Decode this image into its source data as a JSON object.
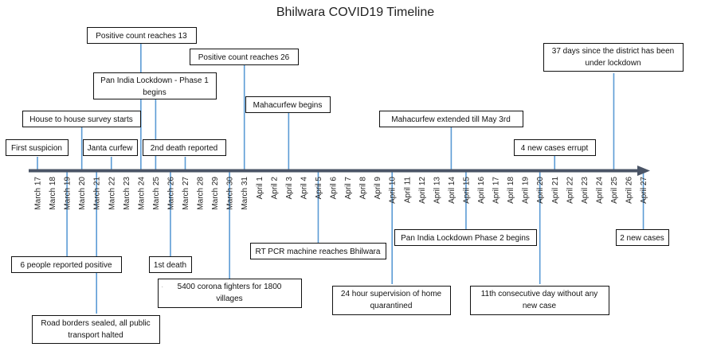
{
  "title": "Bhilwara COVID19 Timeline",
  "colors": {
    "axis": "#4a5466",
    "connector": "#5b9bd5",
    "box_border": "#111111",
    "text": "#111111"
  },
  "dates": [
    "March 17",
    "March 18",
    "March 19",
    "March 20",
    "March 21",
    "March 22",
    "March 23",
    "March 24",
    "March 25",
    "March 26",
    "March 27",
    "March 28",
    "March 29",
    "March 30",
    "March 31",
    "April 1",
    "April 2",
    "April 3",
    "April 4",
    "April 5",
    "April 6",
    "April 7",
    "April 8",
    "April 9",
    "April 10",
    "April 11",
    "April 12",
    "April 13",
    "April 14",
    "April 15",
    "April 16",
    "April 17",
    "April 18",
    "April 19",
    "April 20",
    "April 21",
    "April 22",
    "April 23",
    "April 24",
    "April 25",
    "April 26",
    "April 27"
  ],
  "events_above": [
    {
      "date": "March 17",
      "lines": [
        "First suspicion"
      ]
    },
    {
      "date": "March 20",
      "lines": [
        "House to house survey starts"
      ]
    },
    {
      "date": "March 22",
      "lines": [
        "Janta curfew"
      ]
    },
    {
      "date": "March 24",
      "lines": [
        "Positive count reaches 13"
      ]
    },
    {
      "date": "March 25",
      "lines": [
        "Pan India Lockdown - Phase 1",
        "begins"
      ]
    },
    {
      "date": "March 27",
      "lines": [
        "2nd death reported"
      ]
    },
    {
      "date": "March 31",
      "lines": [
        "Positive count reaches 26"
      ]
    },
    {
      "date": "April 3",
      "lines": [
        "Mahacurfew begins"
      ]
    },
    {
      "date": "April 14",
      "lines": [
        "Mahacurfew extended till May 3rd"
      ]
    },
    {
      "date": "April 21",
      "lines": [
        "4 new cases errupt"
      ]
    },
    {
      "date": "April 25",
      "lines": [
        "37 days since the district has been",
        "under lockdown"
      ]
    }
  ],
  "events_below": [
    {
      "date": "March 19",
      "lines": [
        "6 people reported positive"
      ]
    },
    {
      "date": "March 21",
      "lines": [
        "Road borders sealed, all public",
        "transport halted"
      ]
    },
    {
      "date": "March 26",
      "lines": [
        "1st death"
      ]
    },
    {
      "date": "March 30",
      "lines": [
        "5400 corona fighters for 1800",
        "villages"
      ],
      "marker": "."
    },
    {
      "date": "April 5",
      "lines": [
        "RT PCR machine reaches Bhilwara"
      ]
    },
    {
      "date": "April 10",
      "lines": [
        "24 hour supervision of home",
        "quarantined"
      ]
    },
    {
      "date": "April 15",
      "lines": [
        "Pan India Lockdown Phase 2 begins"
      ]
    },
    {
      "date": "April 20",
      "lines": [
        "11th consecutive day without any",
        "new case"
      ]
    },
    {
      "date": "April 27",
      "lines": [
        "2 new cases"
      ]
    }
  ]
}
